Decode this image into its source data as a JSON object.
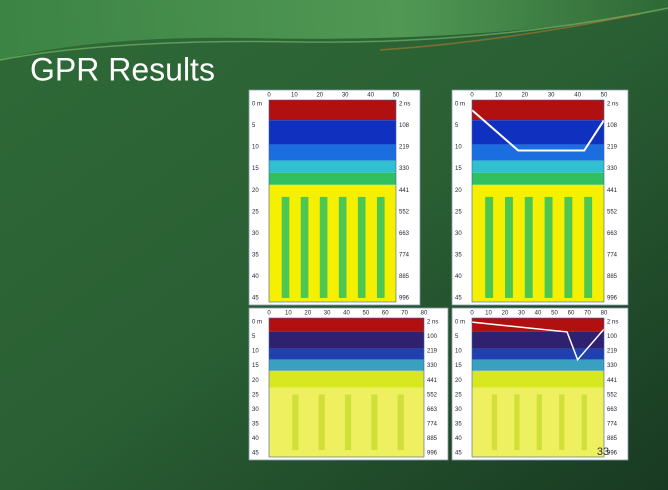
{
  "title": "GPR Results",
  "page_number": "33",
  "panels": [
    {
      "top_axis": [
        "0",
        "10",
        "20",
        "30",
        "40",
        "50"
      ],
      "depth_labels": [
        "0 m",
        "5",
        "10",
        "15",
        "20",
        "25",
        "30",
        "35",
        "40",
        "45"
      ],
      "time_labels": [
        "2 ns",
        "108",
        "219",
        "330",
        "441",
        "552",
        "663",
        "774",
        "885",
        "996"
      ]
    },
    {
      "top_axis": [
        "0",
        "10",
        "20",
        "30",
        "40",
        "50"
      ],
      "depth_labels": [
        "0 m",
        "5",
        "10",
        "15",
        "20",
        "25",
        "30",
        "35",
        "40",
        "45"
      ],
      "time_labels": [
        "2 ns",
        "108",
        "219",
        "330",
        "441",
        "552",
        "663",
        "774",
        "885",
        "996"
      ]
    },
    {
      "top_axis": [
        "0",
        "10",
        "20",
        "30",
        "40",
        "50",
        "60",
        "70",
        "80"
      ],
      "depth_labels": [
        "0 m",
        "5",
        "10",
        "15",
        "20",
        "25",
        "30",
        "35",
        "40",
        "45"
      ],
      "time_labels": [
        "2 ns",
        "100",
        "219",
        "330",
        "441",
        "552",
        "663",
        "774",
        "885",
        "996"
      ]
    },
    {
      "top_axis": [
        "0",
        "10",
        "20",
        "30",
        "40",
        "50",
        "60",
        "70",
        "80"
      ],
      "depth_labels": [
        "0 m",
        "5",
        "10",
        "15",
        "20",
        "25",
        "30",
        "35",
        "40",
        "45"
      ],
      "time_labels": [
        "2 ns",
        "100",
        "219",
        "330",
        "441",
        "552",
        "663",
        "774",
        "885",
        "996"
      ]
    }
  ]
}
